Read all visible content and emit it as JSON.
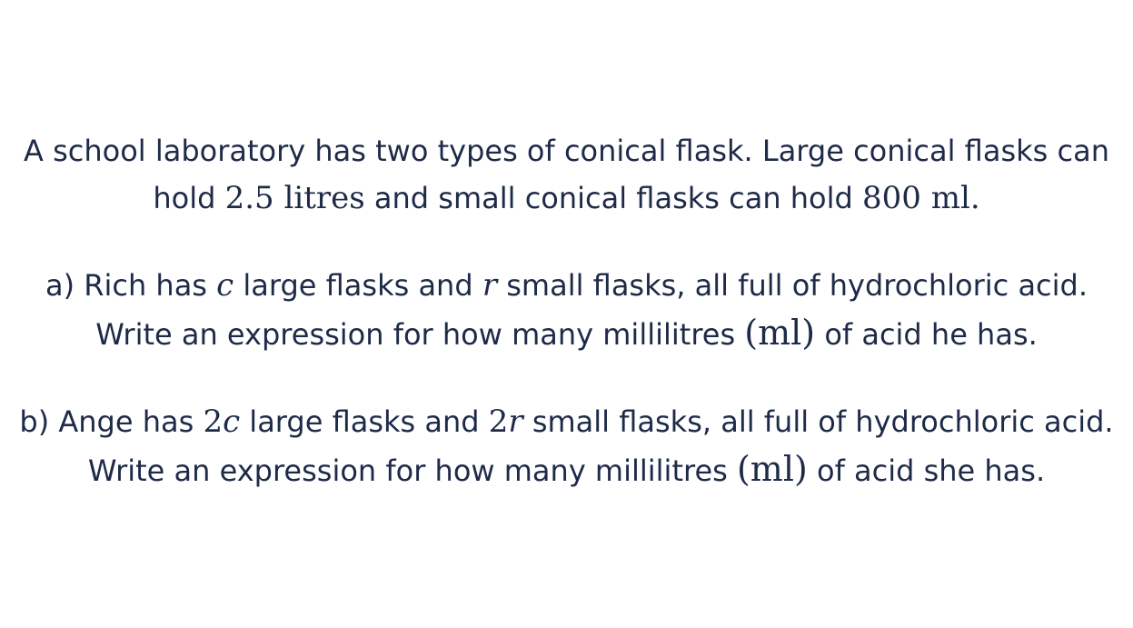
{
  "intro": {
    "t1": "A school laboratory has two types of conical flask. Large conical flasks can hold ",
    "m1": "2.5 litres",
    "t2": " and small conical flasks can hold ",
    "m2": "800 ml.",
    "t3": ""
  },
  "part_a": {
    "t1": "a) Rich has ",
    "m1": "c",
    "t2": " large flasks and ",
    "m2": "r",
    "t3": " small flasks, all full of hydrochloric acid. Write an expression for how many millilitres ",
    "m3": "(ml)",
    "t4": " of acid he has."
  },
  "part_b": {
    "t1": "b) Ange has ",
    "m1n": "2",
    "m1v": "c",
    "t2": " large flasks and ",
    "m2n": "2",
    "m2v": "r",
    "t3": " small flasks, all full of hydrochloric acid. Write an expression for how many millilitres ",
    "m3": "(ml)",
    "t4": " of acid she has."
  }
}
